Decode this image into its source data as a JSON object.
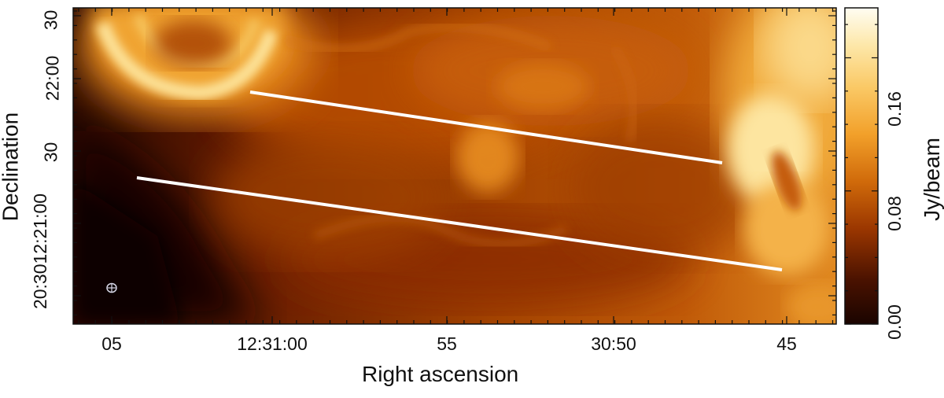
{
  "figure": {
    "colormap": [
      "#1a0400",
      "#3a0c00",
      "#7a2300",
      "#b24800",
      "#dd7a0f",
      "#f4ad32",
      "#fbd978",
      "#fff7df"
    ],
    "line_color": "#ffffff",
    "beam_icon": "beam-ellipse-icon"
  },
  "axes": {
    "xlabel": "Right ascension",
    "ylabel": "Declination",
    "x_ticks": [
      "05",
      "12:31:00",
      "55",
      "30:50",
      "45"
    ],
    "y_ticks": [
      "30",
      "22:00",
      "30",
      "21:00",
      "20:30"
    ],
    "y_tick_extra": "12:21:00",
    "y_tick_extra2": "20:3012:21:00"
  },
  "colorbar": {
    "label": "Jy/beam",
    "ticks": [
      "0.00",
      "0.08",
      "0.16"
    ],
    "range": [
      0.0,
      0.19
    ]
  }
}
